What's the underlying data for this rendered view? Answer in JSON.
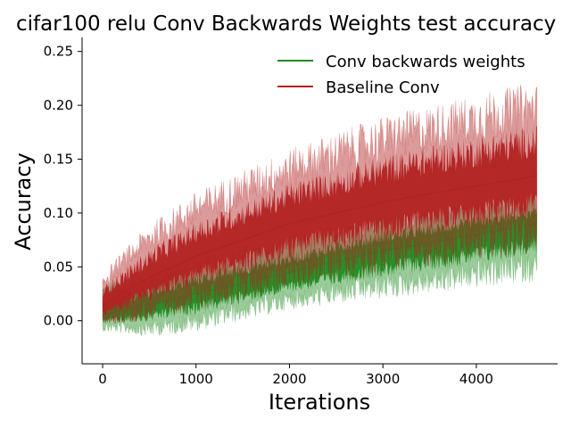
{
  "chart_data": {
    "type": "line",
    "title": "cifar100 relu Conv Backwards Weights test accuracy",
    "xlabel": "Iterations",
    "ylabel": "Accuracy",
    "xlim": [
      -220,
      4870
    ],
    "ylim": [
      -0.04,
      0.263
    ],
    "xticks": [
      0,
      1000,
      2000,
      3000,
      4000
    ],
    "yticks": [
      0.0,
      0.05,
      0.1,
      0.15,
      0.2,
      0.25
    ],
    "xtick_labels": [
      "0",
      "1000",
      "2000",
      "3000",
      "4000"
    ],
    "ytick_labels": [
      "0.00",
      "0.05",
      "0.10",
      "0.15",
      "0.20",
      "0.25"
    ],
    "legend_position": "top-right",
    "grid": false,
    "x_max": 4650,
    "series": [
      {
        "name": "Conv backwards weights",
        "color": "#228b22",
        "mean": {
          "x": [
            0,
            500,
            1000,
            1500,
            2000,
            2500,
            3000,
            3500,
            4000,
            4500,
            4650
          ],
          "y": [
            0.005,
            0.015,
            0.025,
            0.035,
            0.045,
            0.055,
            0.065,
            0.072,
            0.08,
            0.088,
            0.09
          ]
        },
        "upper": {
          "x": [
            0,
            500,
            1000,
            1500,
            2000,
            2500,
            3000,
            3500,
            4000,
            4500,
            4650
          ],
          "y": [
            0.035,
            0.045,
            0.06,
            0.07,
            0.08,
            0.09,
            0.1,
            0.105,
            0.11,
            0.115,
            0.118
          ]
        },
        "lower": {
          "x": [
            0,
            500,
            1000,
            1500,
            2000,
            2500,
            3000,
            3500,
            4000,
            4500,
            4650
          ],
          "y": [
            -0.01,
            -0.015,
            -0.01,
            0.0,
            0.01,
            0.015,
            0.02,
            0.025,
            0.03,
            0.035,
            0.035
          ]
        }
      },
      {
        "name": "Baseline Conv",
        "color": "#b22222",
        "mean": {
          "x": [
            0,
            500,
            1000,
            1500,
            2000,
            2500,
            3000,
            3500,
            4000,
            4500,
            4650
          ],
          "y": [
            0.015,
            0.04,
            0.06,
            0.075,
            0.09,
            0.1,
            0.11,
            0.118,
            0.125,
            0.132,
            0.135
          ]
        },
        "upper": {
          "x": [
            0,
            500,
            1000,
            1500,
            2000,
            2500,
            3000,
            3500,
            4000,
            4500,
            4650
          ],
          "y": [
            0.045,
            0.09,
            0.12,
            0.14,
            0.16,
            0.175,
            0.19,
            0.2,
            0.21,
            0.22,
            0.22
          ]
        },
        "lower": {
          "x": [
            0,
            500,
            1000,
            1500,
            2000,
            2500,
            3000,
            3500,
            4000,
            4500,
            4650
          ],
          "y": [
            -0.005,
            0.0,
            0.01,
            0.02,
            0.03,
            0.04,
            0.045,
            0.05,
            0.055,
            0.06,
            0.06
          ]
        }
      }
    ]
  }
}
